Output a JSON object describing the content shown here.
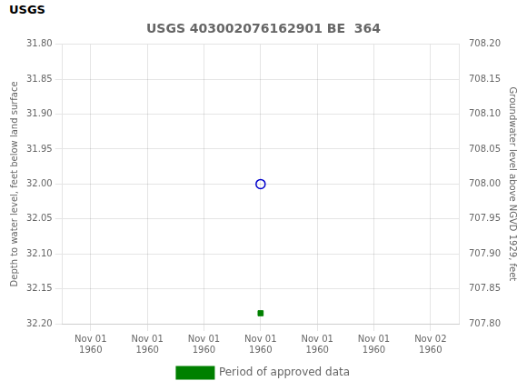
{
  "chart_data": {
    "type": "scatter",
    "title": "USGS 403002076162901 BE  364",
    "annotations": [
      "USGS"
    ],
    "y_label": "Depth to water level, feet below land surface",
    "y2_label": "Groundwater level above NGVD 1929, feet",
    "categories": [
      "Nov 01\n1960",
      "Nov 01\n1960",
      "Nov 01\n1960",
      "Nov 01\n1960",
      "Nov 01\n1960",
      "Nov 01\n1960",
      "Nov 02\n1960"
    ],
    "series": [
      {
        "color": "#0000cc",
        "marker": "open_circle",
        "values": [
          null,
          null,
          null,
          32.0,
          null,
          null,
          null
        ]
      },
      {
        "name": "Period of approved data",
        "color": "#008000",
        "marker": "square",
        "values": [
          null,
          null,
          null,
          32.185,
          null,
          null,
          null
        ]
      }
    ],
    "ylim": [
      32.2,
      31.8
    ],
    "yticks": [
      {
        "value": 31.8,
        "label": "31.80"
      },
      31.85,
      {
        "value": 31.9,
        "label": "31.90"
      },
      31.95,
      {
        "value": 32.0,
        "label": "32.00"
      },
      32.05,
      {
        "value": 32.1,
        "label": "32.10"
      },
      32.15,
      {
        "value": 32.2,
        "label": "32.20"
      }
    ],
    "y2lim": [
      707.8,
      708.2
    ],
    "y2ticks": [
      {
        "value": 708.2,
        "label": "708.20"
      },
      708.15,
      {
        "value": 708.1,
        "label": "708.10"
      },
      708.05,
      {
        "value": 708.0,
        "label": "708.00"
      },
      707.95,
      {
        "value": 707.9,
        "label": "707.90"
      },
      707.85,
      {
        "value": 707.8,
        "label": "707.80"
      }
    ],
    "grid": true,
    "legend": "bottom"
  }
}
